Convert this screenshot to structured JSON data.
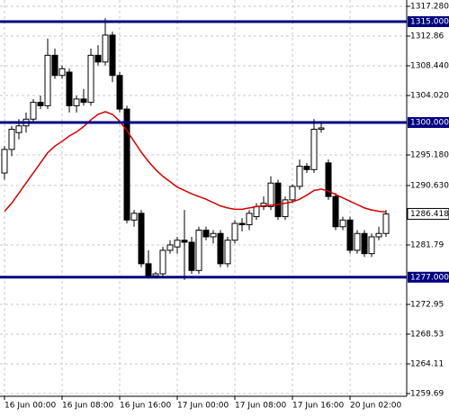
{
  "chart_data": {
    "type": "candlestick",
    "categories": [
      "16 Jun 00:00",
      null,
      null,
      null,
      null,
      null,
      null,
      null,
      "16 Jun 08:00",
      null,
      null,
      null,
      null,
      null,
      null,
      null,
      "16 Jun 16:00",
      null,
      null,
      null,
      null,
      null,
      null,
      null,
      "17 Jun 00:00",
      null,
      null,
      null,
      null,
      null,
      null,
      null,
      "17 Jun 08:00",
      null,
      null,
      null,
      null,
      null,
      null,
      null,
      "17 Jun 16:00",
      null,
      null,
      null,
      null,
      null,
      null,
      null,
      "20 Jun 02:00",
      null,
      null,
      null,
      null,
      null
    ],
    "open": [
      1292.5,
      1296,
      1298.5,
      1299.5,
      1300.5,
      1303,
      1302.5,
      1310,
      1307,
      1307.5,
      1302.5,
      1303.5,
      1303,
      1310,
      1309,
      1313,
      1307,
      1302,
      1285.5,
      1286.5,
      1279,
      1277.2,
      1277.5,
      1281,
      1281.5,
      1282.5,
      1282.2,
      1278,
      1284,
      1283,
      1283.5,
      1279,
      1282.5,
      1285,
      1284.8,
      1286,
      1287.5,
      1287.5,
      1291,
      1286,
      1288.5,
      1290.5,
      1293.5,
      1293,
      1299,
      1294,
      1289,
      1284.5,
      1285.5,
      1281,
      1283.5,
      1280.5,
      1283,
      1283.5
    ],
    "high": [
      1296.5,
      1299.5,
      1300.5,
      1301.5,
      1303.5,
      1304,
      1312.5,
      1311,
      1308.5,
      1308,
      1304,
      1305,
      1311,
      1311.5,
      1315.5,
      1313.5,
      1307.5,
      1302.5,
      1287,
      1287,
      1281,
      1277.8,
      1281.5,
      1282.5,
      1283,
      1287,
      1283,
      1284.5,
      1284.5,
      1284,
      1284,
      1283,
      1285.5,
      1285.8,
      1287,
      1288,
      1289,
      1292,
      1291.5,
      1289,
      1290.8,
      1294.5,
      1294,
      1300.5,
      1299.8,
      1294.5,
      1289.5,
      1286,
      1286,
      1284,
      1284,
      1283.5,
      1284.5,
      1287
    ],
    "low": [
      1291.5,
      1295,
      1297.5,
      1298.5,
      1300,
      1302,
      1302,
      1306.5,
      1306.5,
      1301.5,
      1301.5,
      1302.5,
      1302.5,
      1308.5,
      1308.5,
      1306,
      1301.5,
      1285,
      1284.5,
      1278.5,
      1276.8,
      1276.8,
      1277,
      1280.5,
      1280.5,
      1276.6,
      1277.5,
      1277.5,
      1282.5,
      1282,
      1278.5,
      1278.5,
      1282,
      1283.8,
      1284,
      1285.5,
      1287,
      1287,
      1285.5,
      1285.5,
      1288,
      1290,
      1292.5,
      1292.5,
      1298.5,
      1288.5,
      1284,
      1284,
      1280.5,
      1280.5,
      1280,
      1280,
      1282.5,
      1283
    ],
    "close": [
      1296,
      1299,
      1299.5,
      1300.5,
      1303,
      1302.5,
      1310,
      1307,
      1308,
      1302.5,
      1303.5,
      1303,
      1310,
      1309,
      1313,
      1307,
      1302,
      1285.5,
      1286.5,
      1279,
      1277.2,
      1277.5,
      1281,
      1281.8,
      1282.5,
      1282.2,
      1278,
      1284,
      1283,
      1283.5,
      1279,
      1282.5,
      1285,
      1284.8,
      1286.5,
      1287.5,
      1288,
      1291,
      1286,
      1288.5,
      1290.5,
      1293.5,
      1293,
      1299,
      1299.2,
      1289,
      1284.5,
      1285.5,
      1281,
      1283.5,
      1280.5,
      1283,
      1283.5,
      1286.4
    ],
    "ma_color": "#d40000",
    "ma_values": [
      1286.8,
      1288,
      1289.5,
      1291,
      1292.5,
      1294,
      1295.5,
      1296.5,
      1297.2,
      1298,
      1298.6,
      1299.4,
      1300.4,
      1301.2,
      1301.6,
      1301.2,
      1300.2,
      1298.8,
      1297.2,
      1295.6,
      1294.2,
      1293,
      1292,
      1291.2,
      1290.4,
      1289.9,
      1289.4,
      1289,
      1288.6,
      1288.1,
      1287.6,
      1287.3,
      1287.1,
      1287.1,
      1287.3,
      1287.5,
      1287.6,
      1287.7,
      1287.8,
      1288,
      1288.2,
      1288.6,
      1289.2,
      1289.9,
      1290.1,
      1289.8,
      1289.3,
      1288.8,
      1288.3,
      1287.8,
      1287.3,
      1287,
      1286.8,
      1286.7
    ],
    "ylim": [
      1259.29,
      1318.22
    ],
    "yticks": [
      {
        "value": 1317.28,
        "label": "1317.280"
      },
      1312.86,
      {
        "value": 1308.44,
        "label": "1308.440"
      },
      {
        "value": 1304.02,
        "label": "1304.020"
      },
      {
        "value": 1295.18,
        "label": "1295.180"
      },
      {
        "value": 1290.63,
        "label": "1290.630"
      },
      1281.79,
      1272.95,
      1268.53,
      1264.11,
      1259.69
    ],
    "levels": [
      {
        "value": 1315,
        "label": "1315.000"
      },
      {
        "value": 1300,
        "label": "1300.000"
      },
      {
        "value": 1277,
        "label": "1277.000"
      }
    ],
    "level_color": "#000080",
    "current_price": {
      "value": 1286.418,
      "label": "1286.418"
    },
    "grid": true
  }
}
